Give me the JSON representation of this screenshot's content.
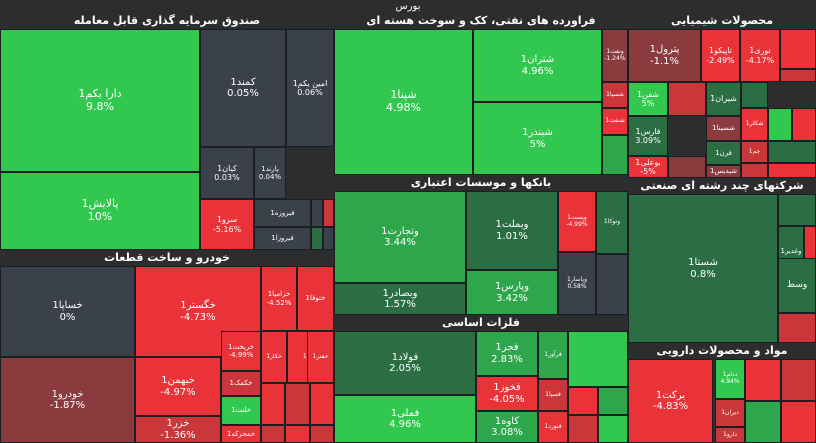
{
  "title": "بورس",
  "colors": {
    "pos_strong": "#32c84f",
    "pos_mid": "#2ea64c",
    "pos_dark": "#2c6e44",
    "neutral": "#3a414a",
    "neg_dark": "#8b3a3e",
    "neg_mid": "#c9373a",
    "neg_strong": "#e93338",
    "border": "#1c1f22"
  },
  "chart_data": {
    "type": "heatmap",
    "title": "بورس",
    "sectors": [
      {
        "name": "صندوق سرمایه گذاری قابل معامله",
        "tiles": [
          {
            "name": "دارا یکم1",
            "change": "9.8%",
            "color": "pos_strong"
          },
          {
            "name": "پالایش1",
            "change": "10%",
            "color": "pos_strong"
          },
          {
            "name": "کمند1",
            "change": "0.05%",
            "color": "neutral"
          },
          {
            "name": "امین یکم1",
            "change": "0.06%",
            "color": "neutral"
          },
          {
            "name": "کیان1",
            "change": "0.03%",
            "color": "neutral"
          },
          {
            "name": "پارند1",
            "change": "0.04%",
            "color": "neutral"
          },
          {
            "name": "سرو1",
            "change": "-5.16%",
            "color": "neg_strong"
          },
          {
            "name": "فیروزه1",
            "change": "",
            "color": "neutral"
          },
          {
            "name": "فیروزا1",
            "change": "",
            "color": "neutral"
          }
        ]
      },
      {
        "name": "فراورده های نفتی، کک و سوخت هسته ای",
        "tiles": [
          {
            "name": "شپنا1",
            "change": "4.98%",
            "color": "pos_strong"
          },
          {
            "name": "شتران1",
            "change": "4.96%",
            "color": "pos_strong"
          },
          {
            "name": "شبندر1",
            "change": "5%",
            "color": "pos_strong"
          },
          {
            "name": "ونفت1",
            "change": "-1.24%",
            "color": "neg_dark"
          },
          {
            "name": "شسپا1",
            "change": "",
            "color": "neg_mid"
          },
          {
            "name": "شنفت1",
            "change": "",
            "color": "neg_strong"
          }
        ]
      },
      {
        "name": "محصولات شیمیایی",
        "tiles": [
          {
            "name": "پترول1",
            "change": "-1.1%",
            "color": "neg_dark"
          },
          {
            "name": "تاپیکو1",
            "change": "-2.49%",
            "color": "neg_strong"
          },
          {
            "name": "نوری1",
            "change": "-4.17%",
            "color": "neg_strong"
          },
          {
            "name": "شفن1",
            "change": "5%",
            "color": "pos_strong"
          },
          {
            "name": "شیران1",
            "change": "",
            "color": "pos_dark"
          },
          {
            "name": "فارس1",
            "change": "3.09%",
            "color": "pos_dark"
          },
          {
            "name": "شسینا1",
            "change": "",
            "color": "neg_dark"
          },
          {
            "name": "شکلر1",
            "change": "",
            "color": "neg_strong"
          },
          {
            "name": "فرن1",
            "change": "",
            "color": "pos_dark"
          },
          {
            "name": "جم1",
            "change": "",
            "color": "neg_mid"
          },
          {
            "name": "بوعلی1",
            "change": "-5%",
            "color": "neg_strong"
          },
          {
            "name": "شپدیس1",
            "change": "",
            "color": "neg_dark"
          }
        ]
      },
      {
        "name": "بانکها و موسسات اعتباری",
        "tiles": [
          {
            "name": "وتجارت1",
            "change": "3.44%",
            "color": "pos_mid"
          },
          {
            "name": "وبملت1",
            "change": "1.01%",
            "color": "pos_dark"
          },
          {
            "name": "وپست1",
            "change": "-4.99%",
            "color": "neg_strong"
          },
          {
            "name": "وبصادر1",
            "change": "1.57%",
            "color": "pos_dark"
          },
          {
            "name": "وپارس1",
            "change": "3.42%",
            "color": "pos_mid"
          },
          {
            "name": "وپاسار1",
            "change": "0.58%",
            "color": "neutral"
          },
          {
            "name": "وتوکا1",
            "change": "",
            "color": "pos_dark"
          }
        ]
      },
      {
        "name": "شرکتهای چند رشته ای صنعتی",
        "tiles": [
          {
            "name": "شستا1",
            "change": "0.8%",
            "color": "pos_dark"
          },
          {
            "name": "وغدیر1",
            "change": "",
            "color": "pos_dark"
          },
          {
            "name": "وسط",
            "change": "",
            "color": "pos_dark"
          }
        ]
      },
      {
        "name": "خودرو و ساخت قطعات",
        "tiles": [
          {
            "name": "خساپا1",
            "change": "0%",
            "color": "neutral"
          },
          {
            "name": "خودرو1",
            "change": "-1.87%",
            "color": "neg_dark"
          },
          {
            "name": "خگستر1",
            "change": "-4.73%",
            "color": "neg_strong"
          },
          {
            "name": "خبهمن1",
            "change": "-4.97%",
            "color": "neg_strong"
          },
          {
            "name": "خزر1",
            "change": "-1.36%",
            "color": "neg_mid"
          },
          {
            "name": "خزامیا1",
            "change": "-4.52%",
            "color": "neg_strong"
          },
          {
            "name": "خمحرکه1",
            "change": "",
            "color": "neg_strong"
          },
          {
            "name": "ختوقا1",
            "change": "",
            "color": "neg_strong"
          },
          {
            "name": "خریخت1",
            "change": "-4.99%",
            "color": "neg_strong"
          },
          {
            "name": "خکمک1",
            "change": "",
            "color": "neg_mid"
          },
          {
            "name": "خلنت1",
            "change": "",
            "color": "pos_strong"
          },
          {
            "name": "خکار1",
            "change": "",
            "color": "neg_strong"
          },
          {
            "name": "خاور1",
            "change": "",
            "color": "neg_strong"
          },
          {
            "name": "خفنر1",
            "change": "",
            "color": "neg_strong"
          }
        ]
      },
      {
        "name": "فلزات اساسی",
        "tiles": [
          {
            "name": "فولاد1",
            "change": "2.05%",
            "color": "pos_dark"
          },
          {
            "name": "فملی1",
            "change": "4.96%",
            "color": "pos_strong"
          },
          {
            "name": "فجر1",
            "change": "2.83%",
            "color": "pos_mid"
          },
          {
            "name": "فخوز1",
            "change": "-4.05%",
            "color": "neg_strong"
          },
          {
            "name": "کاوه1",
            "change": "3.08%",
            "color": "pos_mid"
          },
          {
            "name": "فسپا1",
            "change": "",
            "color": "neg_mid"
          },
          {
            "name": "فنورد1",
            "change": "",
            "color": "neg_strong"
          },
          {
            "name": "فرآور1",
            "change": "",
            "color": "pos_mid"
          }
        ]
      },
      {
        "name": "مواد و محصولات دارویی",
        "tiles": [
          {
            "name": "برکت1",
            "change": "-4.83%",
            "color": "neg_strong"
          },
          {
            "name": "ددام1",
            "change": "4.94%",
            "color": "pos_strong"
          },
          {
            "name": "دیران1",
            "change": "",
            "color": "neg_mid"
          },
          {
            "name": "دارو1",
            "change": "",
            "color": "neg_mid"
          }
        ]
      }
    ]
  }
}
